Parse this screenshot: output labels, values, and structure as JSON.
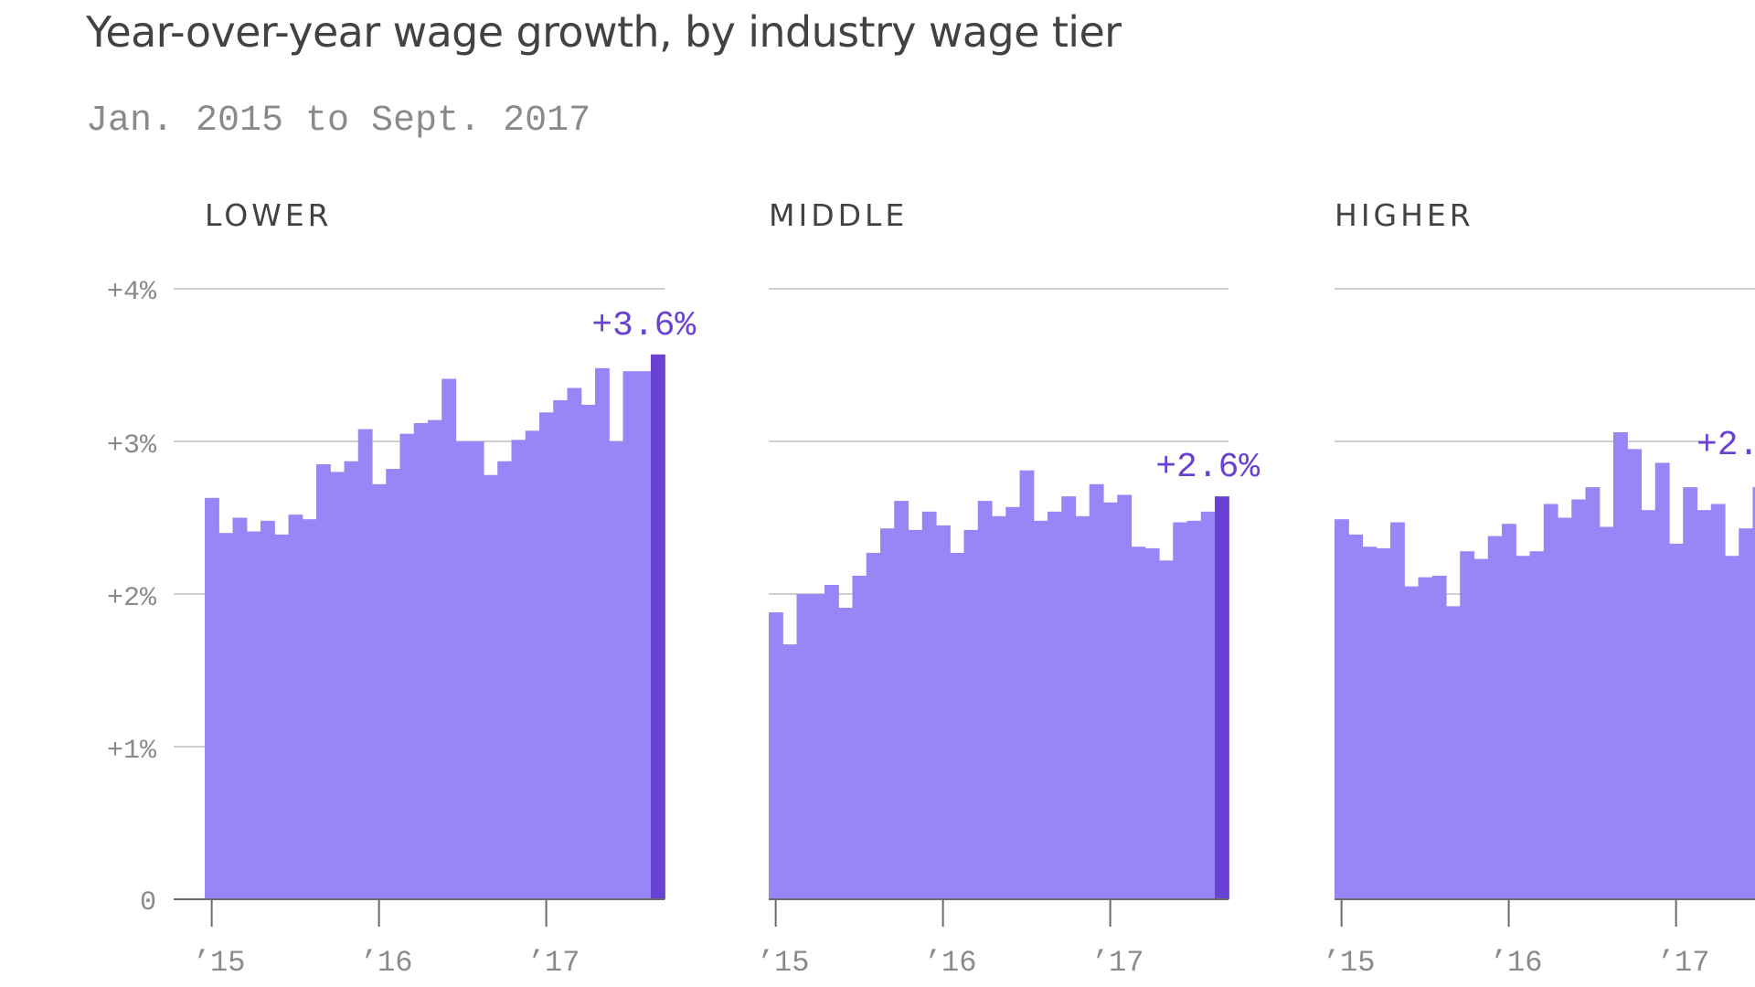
{
  "title": "Year-over-year wage growth, by industry wage tier",
  "subtitle": "Jan. 2015 to Sept. 2017",
  "colors": {
    "bar": "#9786f6",
    "highlight": "#6941d3",
    "annotation": "#6941d3",
    "gridline": "#cfcfcf",
    "axis": "#6b6b6b",
    "title": "#424242",
    "muted_text": "#8a8a8a"
  },
  "chart_data": [
    {
      "type": "bar",
      "title": "LOWER",
      "xlabel": "",
      "ylabel": "",
      "ylim": [
        0,
        4
      ],
      "yticks": [
        0,
        1,
        2,
        3,
        4
      ],
      "ytick_labels": [
        "0",
        "+1%",
        "+2%",
        "+3%",
        "+4%"
      ],
      "grid": true,
      "x_range": "Jan. 2015 to Sept. 2017 (monthly)",
      "xtick_labels": [
        "’15",
        "’16",
        "’17"
      ],
      "xtick_months_index": [
        0,
        12,
        24
      ],
      "values": [
        2.63,
        2.4,
        2.5,
        2.41,
        2.48,
        2.39,
        2.52,
        2.49,
        2.85,
        2.8,
        2.87,
        3.08,
        2.72,
        2.82,
        3.05,
        3.12,
        3.14,
        3.41,
        3.0,
        3.0,
        2.78,
        2.87,
        3.01,
        3.07,
        3.19,
        3.27,
        3.35,
        3.24,
        3.48,
        3.0,
        3.46,
        3.46,
        3.57
      ],
      "highlight_index": 32,
      "annotation": "+3.6%"
    },
    {
      "type": "bar",
      "title": "MIDDLE",
      "xlabel": "",
      "ylabel": "",
      "ylim": [
        0,
        4
      ],
      "yticks": [
        0,
        1,
        2,
        3,
        4
      ],
      "grid": true,
      "x_range": "Jan. 2015 to Sept. 2017 (monthly)",
      "xtick_labels": [
        "’15",
        "’16",
        "’17"
      ],
      "xtick_months_index": [
        0,
        12,
        24
      ],
      "values": [
        1.88,
        1.67,
        2.0,
        2.0,
        2.06,
        1.91,
        2.12,
        2.27,
        2.43,
        2.61,
        2.42,
        2.54,
        2.45,
        2.27,
        2.42,
        2.61,
        2.51,
        2.57,
        2.81,
        2.48,
        2.54,
        2.64,
        2.51,
        2.72,
        2.6,
        2.65,
        2.31,
        2.3,
        2.22,
        2.47,
        2.48,
        2.54,
        2.64
      ],
      "highlight_index": 32,
      "annotation": "+2.6%"
    },
    {
      "type": "bar",
      "title": "HIGHER",
      "xlabel": "",
      "ylabel": "",
      "ylim": [
        0,
        4
      ],
      "yticks": [
        0,
        1,
        2,
        3,
        4
      ],
      "grid": true,
      "x_range": "Jan. 2015 to Sept. 2017 (monthly, cut off at right edge)",
      "xtick_labels": [
        "’15",
        "’16",
        "’17"
      ],
      "xtick_months_index": [
        0,
        12,
        24
      ],
      "values": [
        2.49,
        2.39,
        2.31,
        2.3,
        2.47,
        2.05,
        2.11,
        2.12,
        1.92,
        2.28,
        2.23,
        2.38,
        2.46,
        2.25,
        2.28,
        2.59,
        2.5,
        2.62,
        2.7,
        2.44,
        3.06,
        2.95,
        2.55,
        2.86,
        2.33,
        2.7,
        2.55,
        2.59,
        2.25,
        2.43,
        2.7
      ],
      "highlight_index": null,
      "annotation": "+2."
    }
  ]
}
